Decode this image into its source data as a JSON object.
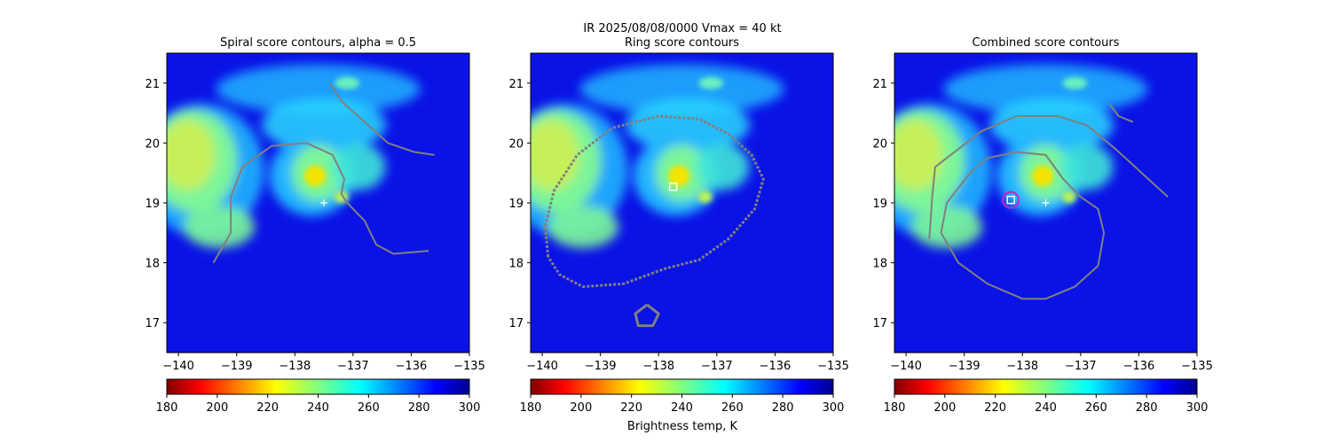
{
  "figure": {
    "suptitle_line1": "IR  2025/08/08/0000    Vmax = 40 kt",
    "colorbar_label": "Brightness temp, K"
  },
  "colors": {
    "background_field": "#0a12e6",
    "cloud_cold": "#f5e400",
    "cloud_mid": "#7cf59a",
    "cloud_warm": "#20b4ff",
    "contour": "#808080",
    "marker_square": "#ffffff",
    "marker_circle": "#cc22cc",
    "center_cross": "#ffffff"
  },
  "chart_data": [
    {
      "type": "heatmap",
      "title": "Spiral score contours, alpha =  0.5",
      "xlim": [
        -140.2,
        -135
      ],
      "ylim": [
        16.5,
        21.5
      ],
      "xticks": [
        -140,
        -139,
        -138,
        -137,
        -136,
        -135
      ],
      "xtick_labels": [
        "−140",
        "−139",
        "−138",
        "−137",
        "−136",
        "−135"
      ],
      "yticks": [
        17,
        18,
        19,
        20,
        21
      ],
      "ytick_labels": [
        "17",
        "18",
        "19",
        "20",
        "21"
      ],
      "colorbar": {
        "cmap": "jet_r",
        "range": [
          180,
          300
        ],
        "ticks": [
          "180",
          "200",
          "220",
          "240",
          "260",
          "280",
          "300"
        ]
      },
      "contours": [
        {
          "name": "spiral-contour",
          "points": [
            [
              -139.4,
              18.0
            ],
            [
              -139.1,
              18.5
            ],
            [
              -139.1,
              19.1
            ],
            [
              -138.9,
              19.6
            ],
            [
              -138.4,
              19.95
            ],
            [
              -137.8,
              20.0
            ],
            [
              -137.35,
              19.8
            ],
            [
              -137.15,
              19.4
            ],
            [
              -137.2,
              19.15
            ],
            [
              -137.1,
              19.0
            ],
            [
              -136.8,
              18.7
            ],
            [
              -136.6,
              18.3
            ],
            [
              -136.3,
              18.15
            ],
            [
              -135.7,
              18.2
            ]
          ]
        },
        {
          "name": "spiral-contour-2",
          "points": [
            [
              -137.4,
              21.0
            ],
            [
              -137.2,
              20.7
            ],
            [
              -136.8,
              20.35
            ],
            [
              -136.4,
              20.0
            ],
            [
              -135.95,
              19.85
            ],
            [
              -135.6,
              19.8
            ]
          ]
        }
      ],
      "center_cross": [
        -137.5,
        19.0
      ],
      "markers": []
    },
    {
      "type": "heatmap",
      "title": "Ring score contours",
      "xlim": [
        -140.2,
        -135
      ],
      "ylim": [
        16.5,
        21.5
      ],
      "xticks": [
        -140,
        -139,
        -138,
        -137,
        -136,
        -135
      ],
      "xtick_labels": [
        "−140",
        "−139",
        "−138",
        "−137",
        "−136",
        "−135"
      ],
      "yticks": [
        17,
        18,
        19,
        20,
        21
      ],
      "ytick_labels": [
        "17",
        "18",
        "19",
        "20",
        "21"
      ],
      "colorbar": {
        "cmap": "jet_r",
        "range": [
          180,
          300
        ],
        "ticks": [
          "180",
          "200",
          "220",
          "240",
          "260",
          "280",
          "300"
        ]
      },
      "contours": [
        {
          "name": "ring-contour-outer",
          "points": [
            [
              -139.9,
              18.1
            ],
            [
              -139.95,
              18.6
            ],
            [
              -139.8,
              19.2
            ],
            [
              -139.4,
              19.8
            ],
            [
              -138.8,
              20.25
            ],
            [
              -138.0,
              20.45
            ],
            [
              -137.3,
              20.4
            ],
            [
              -136.8,
              20.15
            ],
            [
              -136.4,
              19.8
            ],
            [
              -136.2,
              19.4
            ],
            [
              -136.35,
              18.9
            ],
            [
              -136.8,
              18.4
            ],
            [
              -137.3,
              18.05
            ],
            [
              -137.9,
              17.9
            ],
            [
              -138.6,
              17.65
            ],
            [
              -139.3,
              17.6
            ],
            [
              -139.7,
              17.8
            ],
            [
              -139.9,
              18.1
            ]
          ]
        },
        {
          "name": "ring-contour-blob",
          "points": [
            [
              -138.2,
              17.3
            ],
            [
              -138.0,
              17.15
            ],
            [
              -138.1,
              16.95
            ],
            [
              -138.35,
              16.95
            ],
            [
              -138.4,
              17.15
            ],
            [
              -138.2,
              17.3
            ]
          ]
        }
      ],
      "center_cross": null,
      "markers": [
        {
          "shape": "square",
          "coords": [
            -137.75,
            19.27
          ]
        }
      ]
    },
    {
      "type": "heatmap",
      "title": "Combined score contours",
      "xlim": [
        -140.2,
        -135
      ],
      "ylim": [
        16.5,
        21.5
      ],
      "xticks": [
        -140,
        -139,
        -138,
        -137,
        -136,
        -135
      ],
      "xtick_labels": [
        "−140",
        "−139",
        "−138",
        "−137",
        "−136",
        "−135"
      ],
      "yticks": [
        17,
        18,
        19,
        20,
        21
      ],
      "ytick_labels": [
        "17",
        "18",
        "19",
        "20",
        "21"
      ],
      "colorbar": {
        "cmap": "jet_r",
        "range": [
          180,
          300
        ],
        "ticks": [
          "180",
          "200",
          "220",
          "240",
          "260",
          "280",
          "300"
        ]
      },
      "contours": [
        {
          "name": "combined-contour-outer",
          "points": [
            [
              -139.6,
              18.4
            ],
            [
              -139.55,
              19.1
            ],
            [
              -139.5,
              19.6
            ],
            [
              -139.1,
              19.9
            ],
            [
              -138.7,
              20.2
            ],
            [
              -138.1,
              20.45
            ],
            [
              -137.4,
              20.45
            ],
            [
              -136.9,
              20.3
            ],
            [
              -136.4,
              19.9
            ],
            [
              -135.95,
              19.5
            ],
            [
              -135.5,
              19.1
            ]
          ]
        },
        {
          "name": "combined-contour-ring",
          "points": [
            [
              -138.9,
              19.5
            ],
            [
              -139.3,
              19.0
            ],
            [
              -139.4,
              18.5
            ],
            [
              -139.1,
              18.0
            ],
            [
              -138.6,
              17.65
            ],
            [
              -138.0,
              17.4
            ],
            [
              -137.6,
              17.4
            ],
            [
              -137.1,
              17.6
            ],
            [
              -136.7,
              17.95
            ],
            [
              -136.6,
              18.5
            ],
            [
              -136.7,
              18.9
            ],
            [
              -137.0,
              19.1
            ],
            [
              -137.3,
              19.4
            ],
            [
              -137.6,
              19.8
            ],
            [
              -138.1,
              19.85
            ],
            [
              -138.6,
              19.75
            ],
            [
              -138.9,
              19.5
            ]
          ]
        },
        {
          "name": "combined-contour-spur",
          "points": [
            [
              -136.5,
              20.65
            ],
            [
              -136.35,
              20.45
            ],
            [
              -136.1,
              20.35
            ]
          ]
        }
      ],
      "center_cross": [
        -137.6,
        19.0
      ],
      "markers": [
        {
          "shape": "square",
          "coords": [
            -138.2,
            19.05
          ]
        },
        {
          "shape": "circle",
          "coords": [
            -138.2,
            19.05
          ]
        }
      ]
    }
  ]
}
